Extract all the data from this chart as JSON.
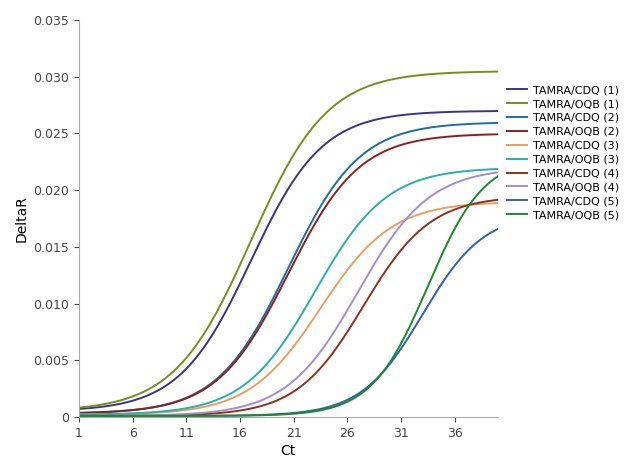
{
  "title": "",
  "xlabel": "Ct",
  "ylabel": "DeltaR",
  "xlim": [
    1,
    40
  ],
  "ylim": [
    0,
    0.035
  ],
  "xticks": [
    1,
    6,
    11,
    16,
    21,
    26,
    31,
    36
  ],
  "yticks": [
    0,
    0.005,
    0.01,
    0.015,
    0.02,
    0.025,
    0.03,
    0.035
  ],
  "series": [
    {
      "label": "TAMRA/CDQ (1)",
      "color": "#3b3580",
      "midpoint": 17.0,
      "steepness": 0.3,
      "plateau": 0.027,
      "baseline": 0.0005
    },
    {
      "label": "TAMRA/OQB (1)",
      "color": "#7a8c1e",
      "midpoint": 17.0,
      "steepness": 0.28,
      "plateau": 0.0305,
      "baseline": 0.0005
    },
    {
      "label": "TAMRA/CDQ (2)",
      "color": "#1a6fa0",
      "midpoint": 20.5,
      "steepness": 0.3,
      "plateau": 0.026,
      "baseline": 0.0003
    },
    {
      "label": "TAMRA/OQB (2)",
      "color": "#8b2020",
      "midpoint": 20.5,
      "steepness": 0.3,
      "plateau": 0.025,
      "baseline": 0.0003
    },
    {
      "label": "TAMRA/CDQ (3)",
      "color": "#e8a060",
      "midpoint": 23.5,
      "steepness": 0.3,
      "plateau": 0.019,
      "baseline": 0.0002
    },
    {
      "label": "TAMRA/OQB (3)",
      "color": "#2aadad",
      "midpoint": 23.0,
      "steepness": 0.3,
      "plateau": 0.022,
      "baseline": 0.0002
    },
    {
      "label": "TAMRA/CDQ (4)",
      "color": "#903020",
      "midpoint": 27.5,
      "steepness": 0.32,
      "plateau": 0.0195,
      "baseline": 0.0001
    },
    {
      "label": "TAMRA/OQB (4)",
      "color": "#a090c8",
      "midpoint": 27.0,
      "steepness": 0.3,
      "plateau": 0.022,
      "baseline": 0.0001
    },
    {
      "label": "TAMRA/CDQ (5)",
      "color": "#3060b0",
      "midpoint": 33.0,
      "steepness": 0.35,
      "plateau": 0.018,
      "baseline": 0.0001
    },
    {
      "label": "TAMRA/OQB (5)",
      "color": "#1a8a2a",
      "midpoint": 33.5,
      "steepness": 0.38,
      "plateau": 0.023,
      "baseline": 0.0001
    }
  ],
  "background_color": "#ffffff",
  "legend_fontsize": 8,
  "axis_fontsize": 10,
  "tick_fontsize": 9
}
